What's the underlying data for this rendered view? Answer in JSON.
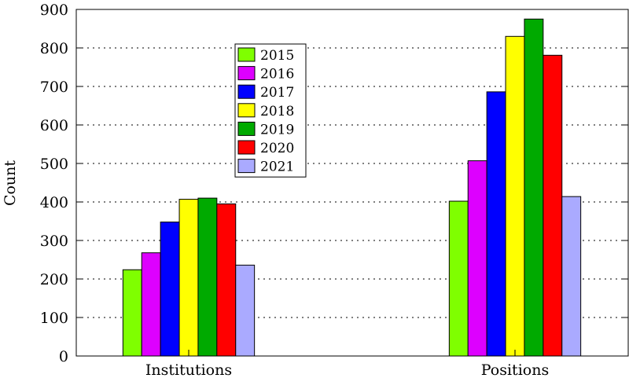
{
  "chart_data": {
    "type": "bar",
    "ylabel": "Count",
    "ylim": [
      0,
      900
    ],
    "yticks": [
      0,
      100,
      200,
      300,
      400,
      500,
      600,
      700,
      800,
      900
    ],
    "grid": "horizontal-dotted",
    "legend_position": "upper-center",
    "categories": [
      "Institutions",
      "Positions"
    ],
    "series": [
      {
        "name": "2015",
        "color": "#7fff00",
        "values": [
          224,
          402
        ]
      },
      {
        "name": "2016",
        "color": "#dd00ff",
        "values": [
          268,
          507
        ]
      },
      {
        "name": "2017",
        "color": "#0000ff",
        "values": [
          348,
          686
        ]
      },
      {
        "name": "2018",
        "color": "#ffff00",
        "values": [
          407,
          830
        ]
      },
      {
        "name": "2019",
        "color": "#00aa00",
        "values": [
          410,
          875
        ]
      },
      {
        "name": "2020",
        "color": "#ff0000",
        "values": [
          395,
          781
        ]
      },
      {
        "name": "2021",
        "color": "#aaaaff",
        "values": [
          236,
          414
        ]
      }
    ]
  }
}
